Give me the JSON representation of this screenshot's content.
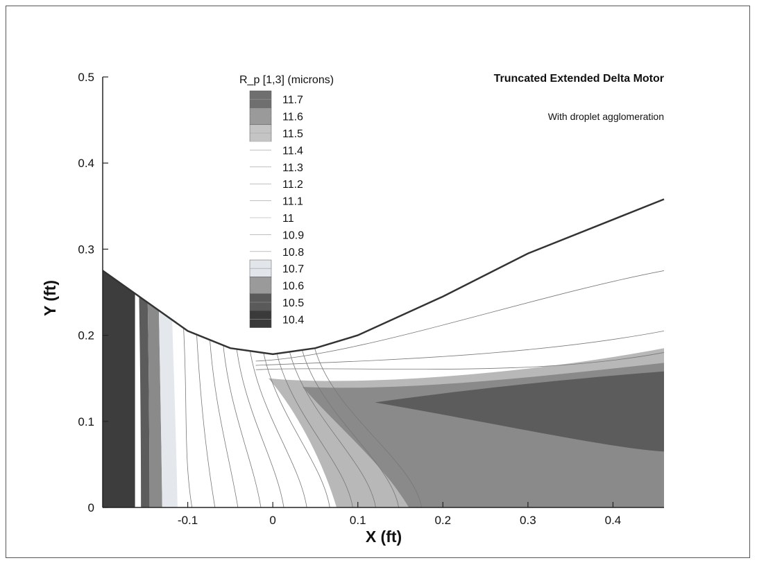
{
  "chart_data": {
    "type": "contour",
    "title": "Truncated Extended Delta Motor",
    "subtitle": "With droplet agglomeration",
    "xlabel": "X (ft)",
    "ylabel": "Y (ft)",
    "xlim": [
      -0.2,
      0.46
    ],
    "ylim": [
      0,
      0.5
    ],
    "x_ticks": [
      {
        "v": -0.1,
        "label": "-0.1"
      },
      {
        "v": 0,
        "label": "0"
      },
      {
        "v": 0.1,
        "label": "0.1"
      },
      {
        "v": 0.2,
        "label": "0.2"
      },
      {
        "v": 0.3,
        "label": "0.3"
      },
      {
        "v": 0.4,
        "label": "0.4"
      }
    ],
    "y_ticks": [
      {
        "v": 0,
        "label": "0"
      },
      {
        "v": 0.1,
        "label": "0.1"
      },
      {
        "v": 0.2,
        "label": "0.2"
      },
      {
        "v": 0.3,
        "label": "0.3"
      },
      {
        "v": 0.4,
        "label": "0.4"
      },
      {
        "v": 0.5,
        "label": "0.5"
      }
    ],
    "legend": {
      "title": "R_p [1,3] (microns)",
      "levels": [
        "11.7",
        "11.6",
        "11.5",
        "11.4",
        "11.3",
        "11.2",
        "11.1",
        "11",
        "10.9",
        "10.8",
        "10.7",
        "10.6",
        "10.5",
        "10.4"
      ],
      "colors": [
        "#6f6f6f",
        "#9a9a9a",
        "#c4c4c4",
        "#ffffff",
        "#ffffff",
        "#ffffff",
        "#ffffff",
        "#ffffff",
        "#ffffff",
        "#ffffff",
        "#e2e6ea",
        "#9a9a9a",
        "#5a5a5a",
        "#3a3a3a"
      ]
    },
    "nozzle_wall": [
      [
        -0.2,
        0.275
      ],
      [
        -0.15,
        0.24
      ],
      [
        -0.1,
        0.205
      ],
      [
        -0.05,
        0.185
      ],
      [
        0.0,
        0.178
      ],
      [
        0.05,
        0.185
      ],
      [
        0.1,
        0.2
      ],
      [
        0.2,
        0.245
      ],
      [
        0.3,
        0.295
      ],
      [
        0.46,
        0.358
      ]
    ],
    "colors": {
      "wall": "#333333",
      "dark": "#3d3d3d",
      "mid_dark": "#5c5c5c",
      "mid": "#8a8a8a",
      "light_gray": "#b8b8b8",
      "pale": "#e4e8ec",
      "contour_line": "#777777"
    }
  }
}
